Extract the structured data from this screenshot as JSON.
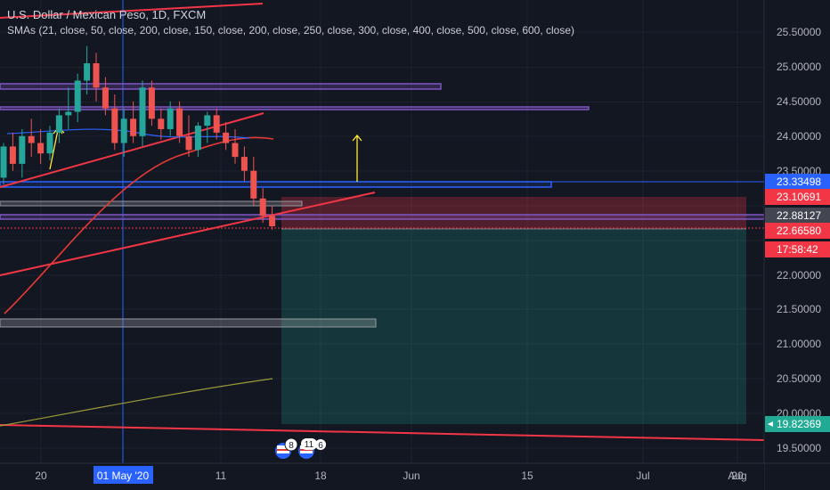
{
  "header": {
    "title": "U.S. Dollar / Mexican Peso, 1D, FXCM",
    "indicator": "SMAs (21, close, 50, close, 200, close, 150, close, 200, close, 250, close, 300, close, 400, close, 500, close, 600, close)"
  },
  "price_axis": {
    "ticks": [
      "25.50000",
      "25.00000",
      "24.50000",
      "24.00000",
      "23.50000",
      "22.00000",
      "21.50000",
      "21.00000",
      "20.50000",
      "20.00000",
      "19.50000"
    ],
    "badges": [
      {
        "label": "23.33498",
        "price": 23.33498,
        "color": "#2962ff"
      },
      {
        "label": "23.10691",
        "price": 23.10691,
        "color": "#f23645"
      },
      {
        "label": "22.88127",
        "price": 22.88127,
        "color": "#434651"
      },
      {
        "label": "22.66580",
        "price": 22.6658,
        "color": "#f23645"
      },
      {
        "label": "17:58:42",
        "price": 22.5,
        "color": "#f23645"
      },
      {
        "label": "19.82369",
        "price": 19.82369,
        "color": "#22ab94"
      }
    ]
  },
  "time_axis": {
    "ticks": [
      "20",
      "01 May '20",
      "11",
      "18",
      "Jun",
      "15",
      "Jul",
      "20",
      "Aug"
    ],
    "highlight": "01 May '20"
  },
  "events": {
    "count_a": "8",
    "count_b": "11",
    "count_c": "6"
  },
  "chart_data": {
    "type": "candlestick",
    "symbol": "USDMXN",
    "timeframe": "1D",
    "source": "FXCM",
    "ylim": [
      19.3,
      25.95
    ],
    "colors": {
      "up": "#26a69a",
      "down": "#ef5350",
      "background": "#131722"
    },
    "candles": [
      {
        "o": 23.4,
        "h": 23.9,
        "l": 23.3,
        "c": 23.85
      },
      {
        "o": 23.85,
        "h": 24.05,
        "l": 23.5,
        "c": 23.6
      },
      {
        "o": 23.6,
        "h": 24.1,
        "l": 23.4,
        "c": 24.0
      },
      {
        "o": 24.0,
        "h": 24.25,
        "l": 23.7,
        "c": 23.9
      },
      {
        "o": 23.9,
        "h": 24.1,
        "l": 23.6,
        "c": 23.75
      },
      {
        "o": 23.75,
        "h": 24.15,
        "l": 23.65,
        "c": 24.05
      },
      {
        "o": 24.05,
        "h": 24.4,
        "l": 23.9,
        "c": 24.3
      },
      {
        "o": 24.3,
        "h": 24.7,
        "l": 24.1,
        "c": 24.35
      },
      {
        "o": 24.35,
        "h": 24.9,
        "l": 24.2,
        "c": 24.8
      },
      {
        "o": 24.8,
        "h": 25.3,
        "l": 24.6,
        "c": 25.05
      },
      {
        "o": 25.05,
        "h": 25.2,
        "l": 24.5,
        "c": 24.7
      },
      {
        "o": 24.7,
        "h": 24.85,
        "l": 24.3,
        "c": 24.4
      },
      {
        "o": 24.4,
        "h": 24.6,
        "l": 23.8,
        "c": 23.9
      },
      {
        "o": 23.9,
        "h": 24.4,
        "l": 23.7,
        "c": 24.25
      },
      {
        "o": 24.25,
        "h": 24.5,
        "l": 23.9,
        "c": 24.0
      },
      {
        "o": 24.0,
        "h": 24.8,
        "l": 23.85,
        "c": 24.7
      },
      {
        "o": 24.7,
        "h": 24.8,
        "l": 24.15,
        "c": 24.25
      },
      {
        "o": 24.25,
        "h": 24.4,
        "l": 23.95,
        "c": 24.1
      },
      {
        "o": 24.1,
        "h": 24.5,
        "l": 24.0,
        "c": 24.4
      },
      {
        "o": 24.4,
        "h": 24.5,
        "l": 23.9,
        "c": 24.0
      },
      {
        "o": 24.0,
        "h": 24.3,
        "l": 23.7,
        "c": 23.8
      },
      {
        "o": 23.8,
        "h": 24.2,
        "l": 23.7,
        "c": 24.15
      },
      {
        "o": 24.15,
        "h": 24.35,
        "l": 23.9,
        "c": 24.3
      },
      {
        "o": 24.3,
        "h": 24.4,
        "l": 23.95,
        "c": 24.05
      },
      {
        "o": 24.05,
        "h": 24.2,
        "l": 23.8,
        "c": 23.9
      },
      {
        "o": 23.9,
        "h": 24.1,
        "l": 23.6,
        "c": 23.7
      },
      {
        "o": 23.7,
        "h": 23.85,
        "l": 23.35,
        "c": 23.5
      },
      {
        "o": 23.5,
        "h": 23.7,
        "l": 23.0,
        "c": 23.1
      },
      {
        "o": 23.1,
        "h": 23.25,
        "l": 22.75,
        "c": 22.85
      },
      {
        "o": 22.85,
        "h": 23.0,
        "l": 22.65,
        "c": 22.7
      }
    ]
  }
}
